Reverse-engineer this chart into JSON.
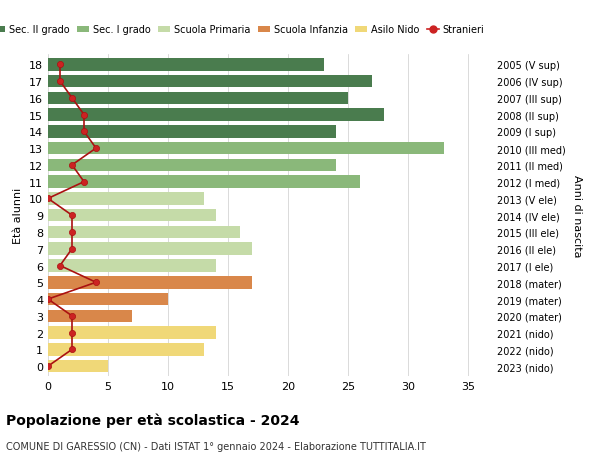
{
  "ages": [
    18,
    17,
    16,
    15,
    14,
    13,
    12,
    11,
    10,
    9,
    8,
    7,
    6,
    5,
    4,
    3,
    2,
    1,
    0
  ],
  "years": [
    "2005 (V sup)",
    "2006 (IV sup)",
    "2007 (III sup)",
    "2008 (II sup)",
    "2009 (I sup)",
    "2010 (III med)",
    "2011 (II med)",
    "2012 (I med)",
    "2013 (V ele)",
    "2014 (IV ele)",
    "2015 (III ele)",
    "2016 (II ele)",
    "2017 (I ele)",
    "2018 (mater)",
    "2019 (mater)",
    "2020 (mater)",
    "2021 (nido)",
    "2022 (nido)",
    "2023 (nido)"
  ],
  "bar_values": [
    23,
    27,
    25,
    28,
    24,
    33,
    24,
    26,
    13,
    14,
    16,
    17,
    14,
    17,
    10,
    7,
    14,
    13,
    5
  ],
  "bar_colors": [
    "#4a7c4e",
    "#4a7c4e",
    "#4a7c4e",
    "#4a7c4e",
    "#4a7c4e",
    "#8ab87a",
    "#8ab87a",
    "#8ab87a",
    "#c5dba8",
    "#c5dba8",
    "#c5dba8",
    "#c5dba8",
    "#c5dba8",
    "#d9874a",
    "#d9874a",
    "#d9874a",
    "#f0d878",
    "#f0d878",
    "#f0d878"
  ],
  "stranieri": [
    1,
    1,
    2,
    3,
    3,
    4,
    2,
    3,
    0,
    2,
    2,
    2,
    1,
    4,
    0,
    2,
    2,
    2,
    0
  ],
  "legend_labels": [
    "Sec. II grado",
    "Sec. I grado",
    "Scuola Primaria",
    "Scuola Infanzia",
    "Asilo Nido",
    "Stranieri"
  ],
  "legend_colors": [
    "#4a7c4e",
    "#8ab87a",
    "#c5dba8",
    "#d9874a",
    "#f0d878",
    "#cc2222"
  ],
  "xlabel": "",
  "ylabel": "Età alunni",
  "ylabel2": "Anni di nascita",
  "title": "Popolazione per età scolastica - 2024",
  "subtitle": "COMUNE DI GARESSIO (CN) - Dati ISTAT 1° gennaio 2024 - Elaborazione TUTTITALIA.IT",
  "xlim": [
    0,
    37
  ],
  "bar_height": 0.75,
  "bg_color": "#ffffff",
  "grid_color": "#cccccc"
}
